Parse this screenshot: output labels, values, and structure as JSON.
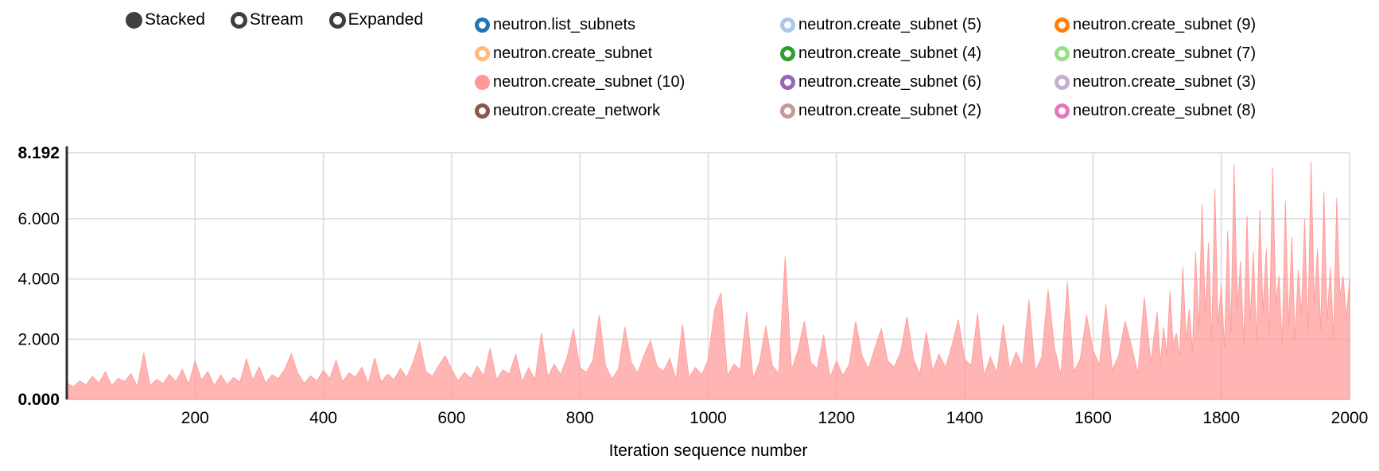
{
  "controls": {
    "color": "#3f3f3f",
    "modes": [
      {
        "label": "Stacked",
        "selected": true
      },
      {
        "label": "Stream",
        "selected": false
      },
      {
        "label": "Expanded",
        "selected": false
      }
    ]
  },
  "legend": {
    "items": [
      {
        "label": "neutron.list_subnets",
        "color": "#1f77b4",
        "filled": false
      },
      {
        "label": "neutron.create_subnet",
        "color": "#ffbb78",
        "filled": false
      },
      {
        "label": "neutron.create_subnet (10)",
        "color": "#ff9896",
        "filled": true
      },
      {
        "label": "neutron.create_network",
        "color": "#8c564b",
        "filled": false
      },
      {
        "label": "neutron.create_subnet (5)",
        "color": "#aec7e8",
        "filled": false
      },
      {
        "label": "neutron.create_subnet (4)",
        "color": "#2ca02c",
        "filled": false
      },
      {
        "label": "neutron.create_subnet (6)",
        "color": "#9467bd",
        "filled": false
      },
      {
        "label": "neutron.create_subnet (2)",
        "color": "#c49c94",
        "filled": false
      },
      {
        "label": "neutron.create_subnet (9)",
        "color": "#ff7f0e",
        "filled": false
      },
      {
        "label": "neutron.create_subnet (7)",
        "color": "#98df8a",
        "filled": false
      },
      {
        "label": "neutron.create_subnet (3)",
        "color": "#c5b0d5",
        "filled": false
      },
      {
        "label": "neutron.create_subnet (8)",
        "color": "#e377c2",
        "filled": false
      }
    ]
  },
  "chart_data": {
    "type": "area",
    "series_name": "neutron.create_subnet (10)",
    "area_color": "#ff9896",
    "area_opacity": 0.72,
    "xlabel": "Iteration sequence number",
    "ylabel": "",
    "xlim": [
      0,
      2000
    ],
    "ylim": [
      0,
      8.192
    ],
    "grid": true,
    "legend_position": "top",
    "x_ticks": [
      {
        "v": 200,
        "label": "200"
      },
      {
        "v": 400,
        "label": "400"
      },
      {
        "v": 600,
        "label": "600"
      },
      {
        "v": 800,
        "label": "800"
      },
      {
        "v": 1000,
        "label": "1000"
      },
      {
        "v": 1200,
        "label": "1200"
      },
      {
        "v": 1400,
        "label": "1400"
      },
      {
        "v": 1600,
        "label": "1600"
      },
      {
        "v": 1800,
        "label": "1800"
      },
      {
        "v": 2000,
        "label": "2000"
      }
    ],
    "y_ticks": [
      {
        "v": 0,
        "label": "0.000",
        "bold": true
      },
      {
        "v": 2,
        "label": "2.000",
        "bold": false
      },
      {
        "v": 4,
        "label": "4.000",
        "bold": false
      },
      {
        "v": 6,
        "label": "6.000",
        "bold": false
      },
      {
        "v": 8.192,
        "label": "8.192",
        "bold": true
      }
    ],
    "points": [
      [
        0,
        0.55
      ],
      [
        10,
        0.42
      ],
      [
        20,
        0.61
      ],
      [
        30,
        0.48
      ],
      [
        40,
        0.77
      ],
      [
        50,
        0.54
      ],
      [
        60,
        0.92
      ],
      [
        70,
        0.46
      ],
      [
        80,
        0.7
      ],
      [
        90,
        0.59
      ],
      [
        100,
        0.86
      ],
      [
        110,
        0.42
      ],
      [
        120,
        1.55
      ],
      [
        130,
        0.45
      ],
      [
        140,
        0.67
      ],
      [
        150,
        0.52
      ],
      [
        160,
        0.83
      ],
      [
        170,
        0.59
      ],
      [
        180,
        1.0
      ],
      [
        190,
        0.5
      ],
      [
        200,
        1.28
      ],
      [
        210,
        0.64
      ],
      [
        220,
        0.93
      ],
      [
        230,
        0.45
      ],
      [
        240,
        0.81
      ],
      [
        250,
        0.49
      ],
      [
        260,
        0.73
      ],
      [
        270,
        0.57
      ],
      [
        280,
        1.35
      ],
      [
        290,
        0.64
      ],
      [
        300,
        1.08
      ],
      [
        310,
        0.54
      ],
      [
        320,
        0.82
      ],
      [
        330,
        0.69
      ],
      [
        340,
        1.0
      ],
      [
        350,
        1.52
      ],
      [
        360,
        0.88
      ],
      [
        370,
        0.53
      ],
      [
        380,
        0.78
      ],
      [
        390,
        0.61
      ],
      [
        400,
        0.97
      ],
      [
        410,
        0.69
      ],
      [
        420,
        1.3
      ],
      [
        430,
        0.58
      ],
      [
        440,
        0.88
      ],
      [
        450,
        0.74
      ],
      [
        460,
        1.07
      ],
      [
        470,
        0.52
      ],
      [
        480,
        1.38
      ],
      [
        490,
        0.57
      ],
      [
        500,
        0.84
      ],
      [
        510,
        0.65
      ],
      [
        520,
        1.03
      ],
      [
        530,
        0.73
      ],
      [
        540,
        1.23
      ],
      [
        550,
        1.92
      ],
      [
        560,
        0.92
      ],
      [
        570,
        0.77
      ],
      [
        580,
        1.13
      ],
      [
        590,
        1.45
      ],
      [
        600,
        1.0
      ],
      [
        610,
        0.61
      ],
      [
        620,
        0.89
      ],
      [
        630,
        0.69
      ],
      [
        640,
        1.1
      ],
      [
        650,
        0.78
      ],
      [
        660,
        1.7
      ],
      [
        670,
        0.66
      ],
      [
        680,
        0.98
      ],
      [
        690,
        0.84
      ],
      [
        700,
        1.5
      ],
      [
        710,
        0.59
      ],
      [
        720,
        1.05
      ],
      [
        730,
        0.65
      ],
      [
        740,
        2.2
      ],
      [
        750,
        0.74
      ],
      [
        760,
        1.17
      ],
      [
        770,
        0.82
      ],
      [
        780,
        1.4
      ],
      [
        790,
        2.35
      ],
      [
        800,
        1.06
      ],
      [
        810,
        0.89
      ],
      [
        820,
        1.28
      ],
      [
        830,
        2.8
      ],
      [
        840,
        1.11
      ],
      [
        850,
        0.68
      ],
      [
        860,
        1.0
      ],
      [
        870,
        2.4
      ],
      [
        880,
        1.24
      ],
      [
        890,
        0.87
      ],
      [
        900,
        1.47
      ],
      [
        910,
        1.95
      ],
      [
        920,
        1.11
      ],
      [
        930,
        0.93
      ],
      [
        940,
        1.36
      ],
      [
        950,
        0.66
      ],
      [
        960,
        2.5
      ],
      [
        970,
        0.72
      ],
      [
        980,
        1.06
      ],
      [
        990,
        0.82
      ],
      [
        1000,
        1.31
      ],
      [
        1010,
        3.0
      ],
      [
        1020,
        3.55
      ],
      [
        1030,
        0.78
      ],
      [
        1040,
        1.17
      ],
      [
        1050,
        0.98
      ],
      [
        1060,
        2.9
      ],
      [
        1070,
        0.7
      ],
      [
        1080,
        1.23
      ],
      [
        1090,
        2.45
      ],
      [
        1100,
        1.11
      ],
      [
        1110,
        0.86
      ],
      [
        1120,
        4.75
      ],
      [
        1130,
        0.96
      ],
      [
        1140,
        1.63
      ],
      [
        1150,
        2.6
      ],
      [
        1160,
        1.22
      ],
      [
        1170,
        1.02
      ],
      [
        1180,
        2.15
      ],
      [
        1190,
        0.72
      ],
      [
        1200,
        1.28
      ],
      [
        1210,
        0.79
      ],
      [
        1220,
        1.17
      ],
      [
        1230,
        2.6
      ],
      [
        1240,
        1.44
      ],
      [
        1250,
        1.01
      ],
      [
        1260,
        1.71
      ],
      [
        1270,
        2.35
      ],
      [
        1280,
        1.28
      ],
      [
        1290,
        1.07
      ],
      [
        1300,
        1.56
      ],
      [
        1310,
        2.75
      ],
      [
        1320,
        1.35
      ],
      [
        1330,
        0.83
      ],
      [
        1340,
        2.25
      ],
      [
        1350,
        0.95
      ],
      [
        1360,
        1.5
      ],
      [
        1370,
        1.06
      ],
      [
        1380,
        1.79
      ],
      [
        1390,
        2.65
      ],
      [
        1400,
        1.34
      ],
      [
        1410,
        1.12
      ],
      [
        1420,
        2.85
      ],
      [
        1430,
        0.79
      ],
      [
        1440,
        1.42
      ],
      [
        1450,
        0.87
      ],
      [
        1460,
        2.5
      ],
      [
        1470,
        0.99
      ],
      [
        1480,
        1.57
      ],
      [
        1490,
        1.11
      ],
      [
        1500,
        3.3
      ],
      [
        1510,
        0.93
      ],
      [
        1520,
        1.4
      ],
      [
        1530,
        3.65
      ],
      [
        1540,
        1.7
      ],
      [
        1550,
        0.82
      ],
      [
        1560,
        3.9
      ],
      [
        1570,
        0.91
      ],
      [
        1580,
        1.34
      ],
      [
        1590,
        2.8
      ],
      [
        1600,
        1.64
      ],
      [
        1610,
        1.15
      ],
      [
        1620,
        3.15
      ],
      [
        1630,
        0.97
      ],
      [
        1640,
        1.46
      ],
      [
        1650,
        2.6
      ],
      [
        1660,
        1.77
      ],
      [
        1670,
        0.85
      ],
      [
        1680,
        3.4
      ],
      [
        1690,
        1.22
      ],
      [
        1700,
        2.9
      ],
      [
        1705,
        1.2
      ],
      [
        1710,
        2.4
      ],
      [
        1715,
        1.5
      ],
      [
        1720,
        3.6
      ],
      [
        1725,
        1.8
      ],
      [
        1730,
        2.2
      ],
      [
        1735,
        1.4
      ],
      [
        1740,
        4.4
      ],
      [
        1745,
        2.0
      ],
      [
        1750,
        3.0
      ],
      [
        1755,
        1.6
      ],
      [
        1760,
        4.9
      ],
      [
        1765,
        2.3
      ],
      [
        1770,
        6.5
      ],
      [
        1775,
        2.8
      ],
      [
        1780,
        5.2
      ],
      [
        1785,
        1.9
      ],
      [
        1790,
        7.0
      ],
      [
        1795,
        2.5
      ],
      [
        1800,
        3.8
      ],
      [
        1805,
        1.7
      ],
      [
        1810,
        5.6
      ],
      [
        1815,
        2.2
      ],
      [
        1820,
        7.8
      ],
      [
        1825,
        3.0
      ],
      [
        1830,
        4.6
      ],
      [
        1835,
        1.8
      ],
      [
        1840,
        6.1
      ],
      [
        1845,
        2.6
      ],
      [
        1850,
        4.9
      ],
      [
        1855,
        1.9
      ],
      [
        1860,
        6.3
      ],
      [
        1865,
        2.9
      ],
      [
        1870,
        5.0
      ],
      [
        1875,
        2.1
      ],
      [
        1880,
        7.7
      ],
      [
        1885,
        3.2
      ],
      [
        1890,
        4.1
      ],
      [
        1895,
        1.8
      ],
      [
        1900,
        6.6
      ],
      [
        1905,
        2.4
      ],
      [
        1910,
        5.4
      ],
      [
        1915,
        2.0
      ],
      [
        1920,
        4.3
      ],
      [
        1925,
        2.8
      ],
      [
        1930,
        6.0
      ],
      [
        1935,
        2.2
      ],
      [
        1940,
        7.9
      ],
      [
        1945,
        3.1
      ],
      [
        1950,
        5.0
      ],
      [
        1955,
        2.3
      ],
      [
        1960,
        6.9
      ],
      [
        1965,
        2.6
      ],
      [
        1970,
        4.4
      ],
      [
        1975,
        2.0
      ],
      [
        1980,
        6.7
      ],
      [
        1985,
        3.4
      ],
      [
        1990,
        4.1
      ],
      [
        1995,
        2.7
      ],
      [
        2000,
        4.0
      ]
    ]
  }
}
